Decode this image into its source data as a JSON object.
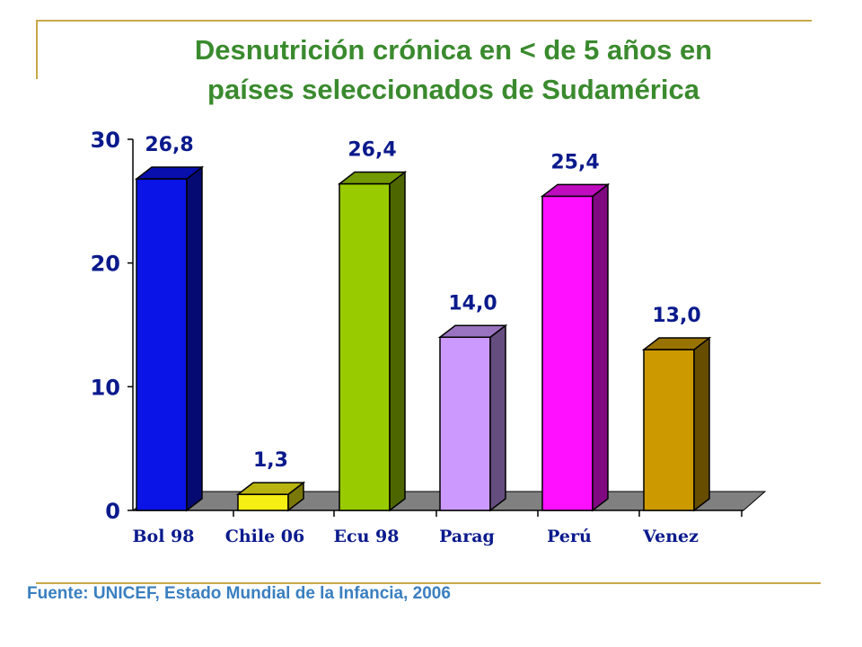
{
  "title_line1": "Desnutrición crónica en < de 5 años  en",
  "title_line2": "países seleccionados de Sudamérica",
  "source": "Fuente: UNICEF, Estado Mundial de la Infancia, 2006",
  "colors": {
    "frame": "#c8a84a",
    "title": "#3a8a2e",
    "source": "#3a7fc0",
    "value_labels": "#0a1a8c",
    "axis_text": "#0a1a8c",
    "floor": "#808080"
  },
  "chart_data": {
    "type": "bar",
    "categories": [
      "Bol 98",
      "Chile 06",
      "Ecu 98",
      "Parag",
      "Perú",
      "Venez"
    ],
    "values": [
      26.8,
      1.3,
      26.4,
      14.0,
      25.4,
      13.0
    ],
    "value_labels": [
      "26,8",
      "1,3",
      "26,4",
      "14,0",
      "25,4",
      "13,0"
    ],
    "bar_colors": [
      "#0a14e6",
      "#f5ef14",
      "#99cc00",
      "#cc99ff",
      "#ff10ff",
      "#cc9900"
    ],
    "ylim": [
      0,
      30
    ],
    "yticks": [
      0,
      10,
      20,
      30
    ],
    "grid": false,
    "three_d": true
  }
}
